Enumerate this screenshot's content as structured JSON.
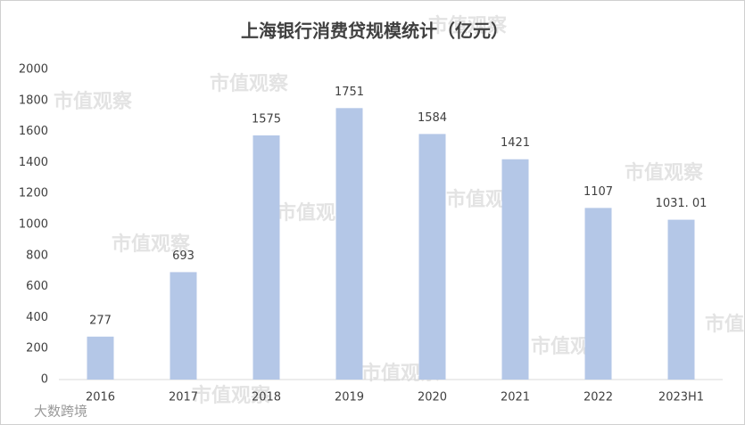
{
  "chart_data": {
    "type": "bar",
    "title": "上海银行消费贷规模统计（亿元）",
    "categories": [
      "2016",
      "2017",
      "2018",
      "2019",
      "2020",
      "2021",
      "2022",
      "2023H1"
    ],
    "values": [
      277,
      693,
      1575,
      1751,
      1584,
      1421,
      1107,
      1031.01
    ],
    "value_labels": [
      "277",
      "693",
      "1575",
      "1751",
      "1584",
      "1421",
      "1107",
      "1031. 01"
    ],
    "color": "#b4c7e7",
    "ylim": [
      0,
      2000
    ],
    "yticks": [
      0,
      200,
      400,
      600,
      800,
      1000,
      1200,
      1400,
      1600,
      1800,
      2000
    ],
    "grid": false
  },
  "watermark": "市值观察",
  "source_logo": "大数跨境"
}
